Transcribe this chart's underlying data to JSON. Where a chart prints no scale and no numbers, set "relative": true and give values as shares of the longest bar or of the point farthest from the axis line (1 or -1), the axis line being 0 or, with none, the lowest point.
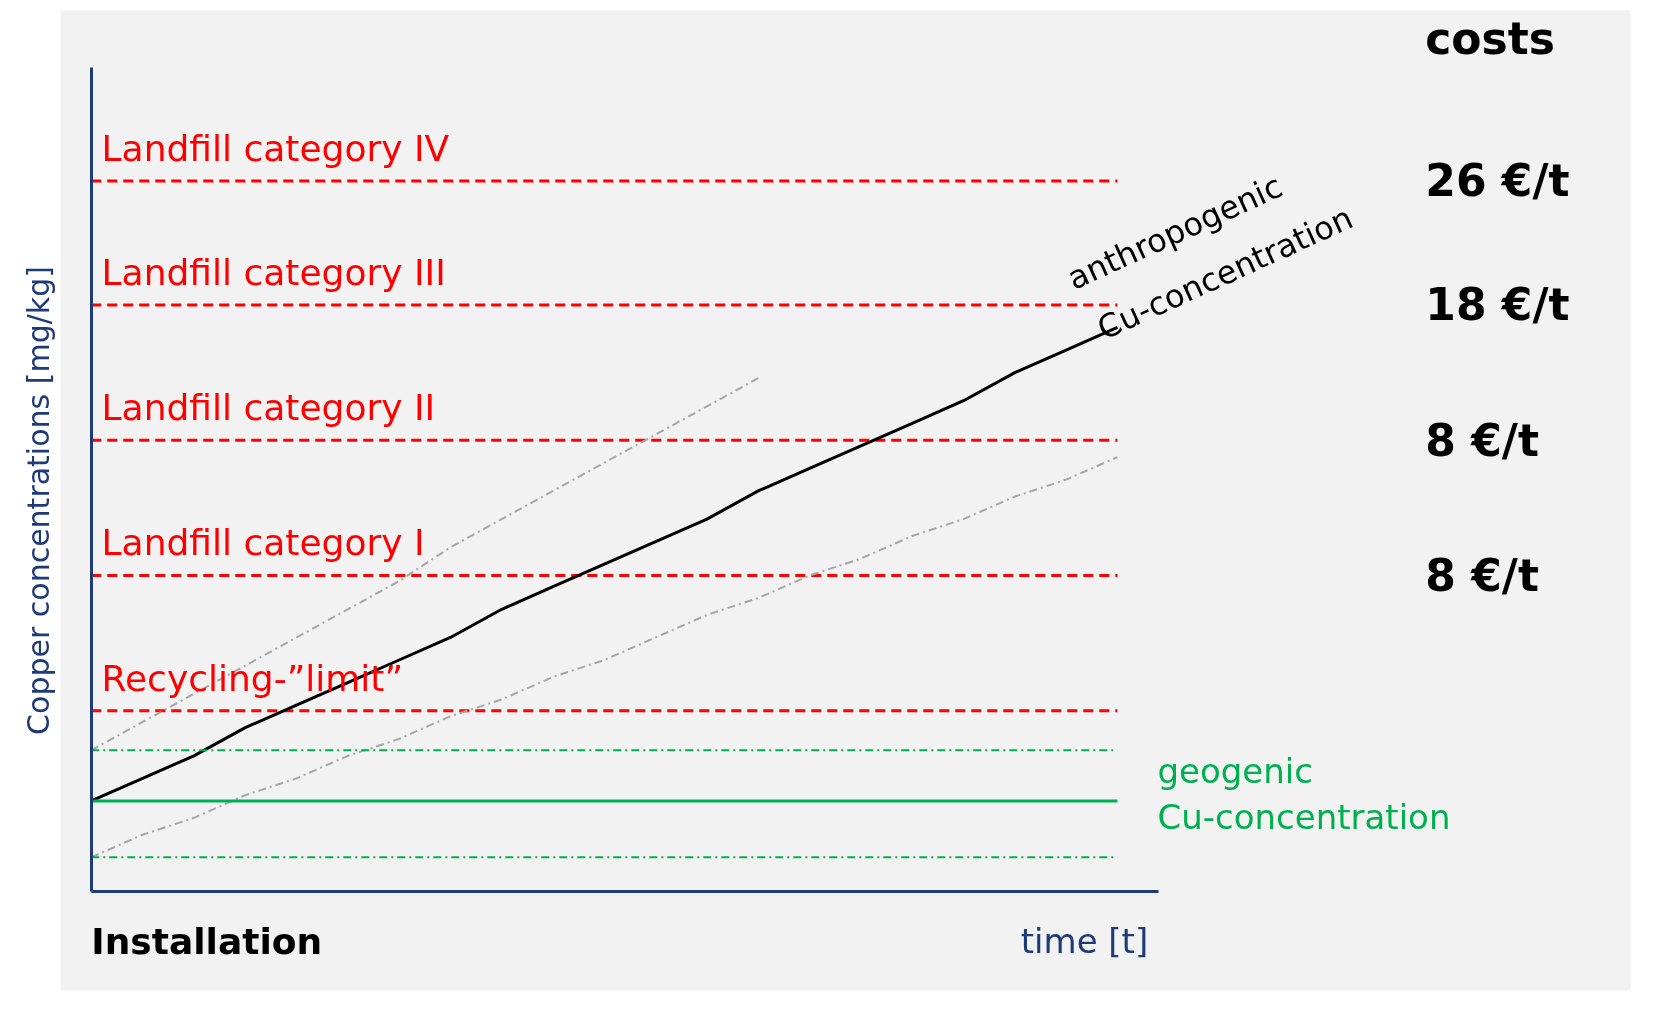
{
  "chart_data": {
    "type": "line",
    "relative": true,
    "xlabel": "time [t]",
    "ylabel": "Copper concentrations [mg/kg]",
    "categories": [
      null,
      null,
      null,
      null,
      null,
      null,
      null,
      null,
      null,
      null,
      null,
      null,
      null,
      null,
      null,
      null,
      null,
      null,
      null,
      null,
      null
    ],
    "series": [
      {
        "name": "anthropogenic Cu-concentration",
        "color": "#000000",
        "line_style": "solid",
        "values": [
          0.16,
          0.2,
          0.24,
          0.29,
          0.33,
          0.37,
          0.41,
          0.45,
          0.5,
          0.54,
          0.58,
          0.62,
          0.66,
          0.71,
          0.75,
          0.79,
          0.83,
          0.87,
          0.92,
          0.96,
          1.0
        ]
      },
      {
        "color": "#a6a6a6",
        "line_style": "dashdot",
        "values": [
          0.25,
          0.3,
          0.35,
          0.4,
          0.45,
          0.5,
          0.55,
          0.61,
          0.66,
          0.71,
          0.76,
          0.81,
          0.86,
          0.91,
          null,
          null,
          null,
          null,
          null,
          null,
          null
        ]
      },
      {
        "color": "#a6a6a6",
        "line_style": "dashdot",
        "values": [
          0.06,
          0.1,
          0.13,
          0.17,
          0.2,
          0.24,
          0.27,
          0.31,
          0.34,
          0.38,
          0.41,
          0.45,
          0.49,
          0.52,
          0.56,
          0.59,
          0.63,
          0.66,
          0.7,
          0.73,
          0.77
        ]
      },
      {
        "name": "geogenic Cu-concentration",
        "color": "#00b050",
        "line_style": "solid",
        "values": [
          0.16,
          0.16,
          0.16,
          0.16,
          0.16,
          0.16,
          0.16,
          0.16,
          0.16,
          0.16,
          0.16,
          0.16,
          0.16,
          0.16,
          0.16,
          0.16,
          0.16,
          0.16,
          0.16,
          0.16,
          0.16
        ]
      },
      {
        "color": "#00b050",
        "line_style": "dashdot",
        "values": [
          0.25,
          0.25,
          0.25,
          0.25,
          0.25,
          0.25,
          0.25,
          0.25,
          0.25,
          0.25,
          0.25,
          0.25,
          0.25,
          0.25,
          0.25,
          0.25,
          0.25,
          0.25,
          0.25,
          0.25,
          0.25
        ]
      },
      {
        "color": "#00b050",
        "line_style": "dashdot",
        "values": [
          0.06,
          0.06,
          0.06,
          0.06,
          0.06,
          0.06,
          0.06,
          0.06,
          0.06,
          0.06,
          0.06,
          0.06,
          0.06,
          0.06,
          0.06,
          0.06,
          0.06,
          0.06,
          0.06,
          0.06,
          0.06
        ]
      }
    ],
    "ref_lines": [
      {
        "axis": "y",
        "value": 1.26,
        "label": "Landfill category IV",
        "color": "#ff0000",
        "line_style": "dashed"
      },
      {
        "axis": "y",
        "value": 1.04,
        "label": "Landfill category III",
        "color": "#ff0000",
        "line_style": "dashed"
      },
      {
        "axis": "y",
        "value": 0.8,
        "label": "Landfill category II",
        "color": "#ff0000",
        "line_style": "dashed"
      },
      {
        "axis": "y",
        "value": 0.56,
        "label": "Landfill category I",
        "color": "#ff0000",
        "line_style": "dashed"
      },
      {
        "axis": "y",
        "value": 0.32,
        "label": "Recycling-”limit”",
        "color": "#ff0000",
        "line_style": "dashed"
      }
    ],
    "annotations": [
      "costs",
      "26 €/t",
      "18 €/t",
      "8 €/t",
      "8 €/t",
      "Installation"
    ]
  }
}
